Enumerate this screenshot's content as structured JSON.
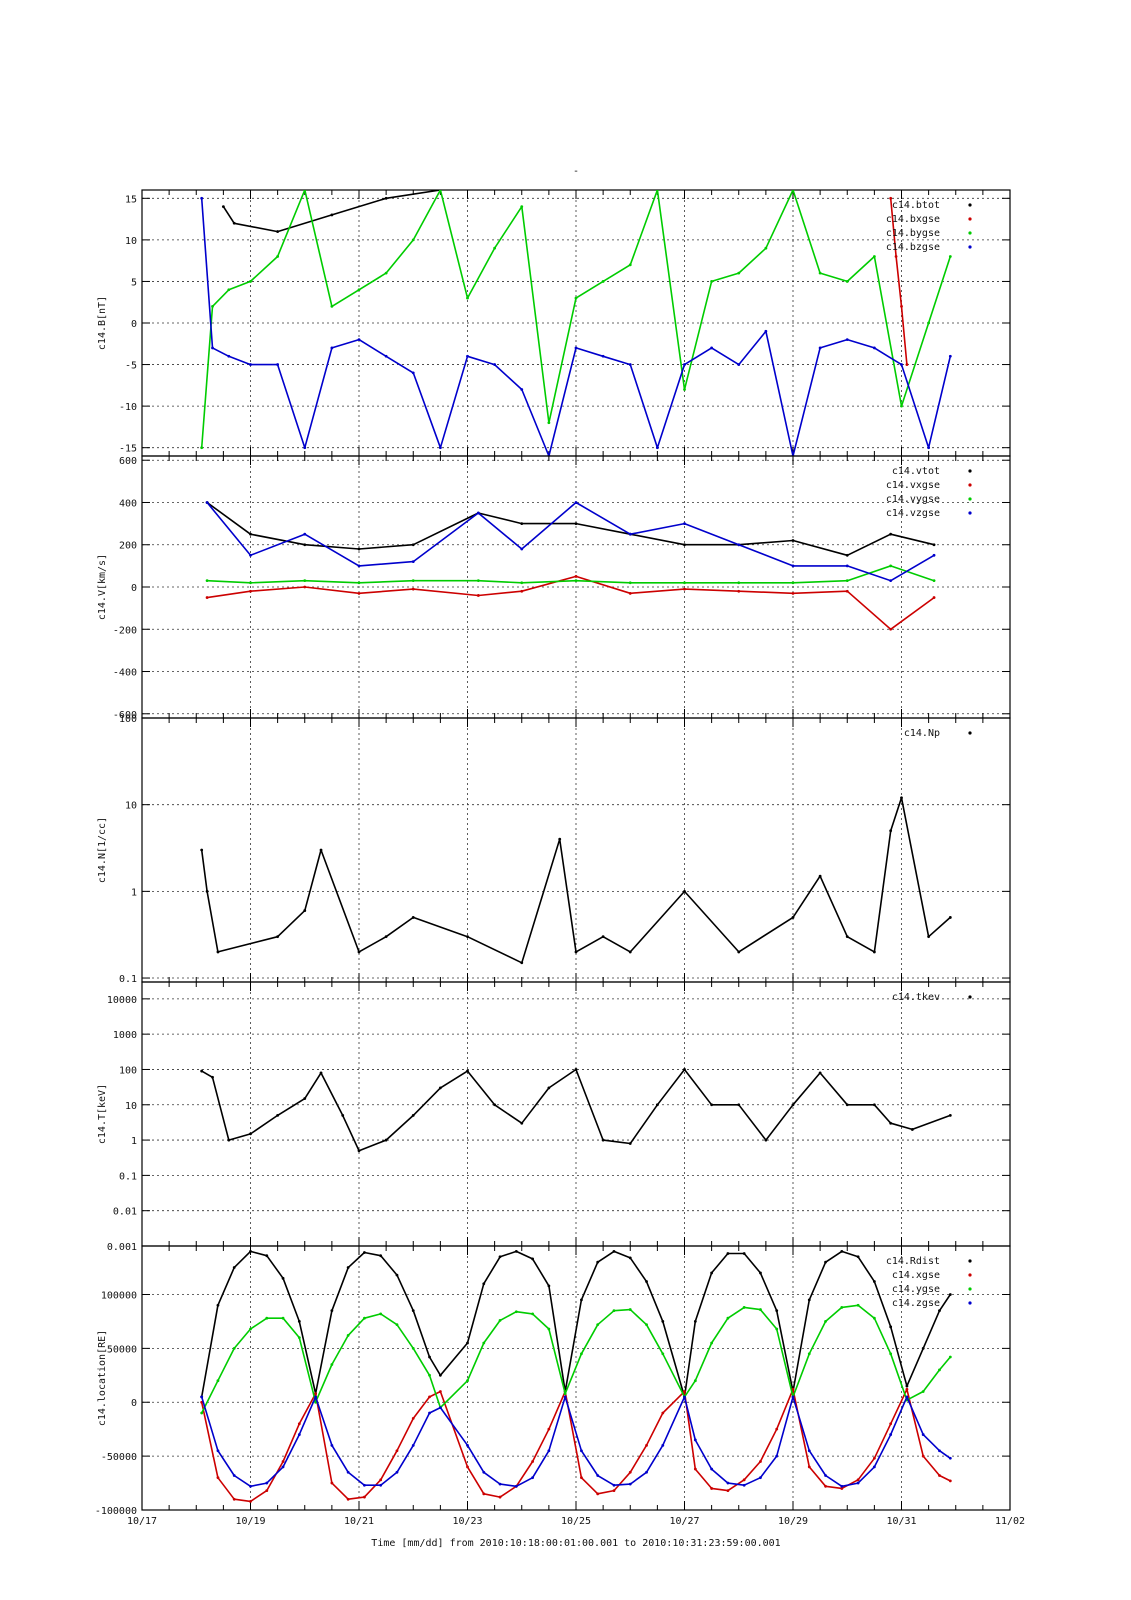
{
  "page_title": "-",
  "x_axis": {
    "label": "Time [mm/dd]  from 2010:10:18:00:01:00.001  to  2010:10:31:23:59:00.001",
    "range_days": [
      17,
      33
    ],
    "tick_labels": [
      "10/17",
      "10/19",
      "10/21",
      "10/23",
      "10/25",
      "10/27",
      "10/29",
      "10/31",
      "11/02"
    ],
    "tick_days": [
      17,
      19,
      21,
      23,
      25,
      27,
      29,
      31,
      33
    ],
    "minor_step_days": 0.5
  },
  "colors": {
    "black": "#000000",
    "red": "#cc0000",
    "green": "#00cc00",
    "blue": "#0000cc"
  },
  "chart_data": [
    {
      "type": "scatter",
      "ylabel": "c14.B[nT]",
      "ylim": [
        -16,
        16
      ],
      "yticks": [
        -15,
        -10,
        -5,
        0,
        5,
        10,
        15
      ],
      "ytick_labels": [
        "-15",
        "-10",
        "-5",
        "0",
        "5",
        "10",
        "15"
      ],
      "grid": true,
      "legend_position": "top-right",
      "series": [
        {
          "name": "c14.btot",
          "color": "black",
          "x": [
            18.5,
            18.7,
            19.5,
            20.5,
            21.5,
            22.5
          ],
          "y": [
            14,
            12,
            11,
            13,
            15,
            16
          ]
        },
        {
          "name": "c14.bxgse",
          "color": "red",
          "x": [
            30.8,
            30.9,
            31.0,
            31.1
          ],
          "y": [
            15,
            8,
            2,
            -5
          ]
        },
        {
          "name": "c14.bygse",
          "color": "green",
          "x": [
            18.1,
            18.3,
            18.6,
            19.0,
            19.5,
            20.0,
            20.5,
            21.0,
            21.5,
            22.0,
            22.5,
            23.0,
            23.5,
            24.0,
            24.5,
            25.0,
            25.5,
            26.0,
            26.5,
            27.0,
            27.5,
            28.0,
            28.5,
            29.0,
            29.5,
            30.0,
            30.5,
            31.0,
            31.5,
            31.9
          ],
          "y": [
            -15,
            2,
            4,
            5,
            8,
            16,
            2,
            4,
            6,
            10,
            16,
            3,
            9,
            14,
            -12,
            3,
            5,
            7,
            16,
            -8,
            5,
            6,
            9,
            16,
            6,
            5,
            8,
            -10,
            0,
            8
          ]
        },
        {
          "name": "c14.bzgse",
          "color": "blue",
          "x": [
            18.1,
            18.3,
            18.6,
            19.0,
            19.5,
            20.0,
            20.5,
            21.0,
            21.5,
            22.0,
            22.5,
            23.0,
            23.5,
            24.0,
            24.5,
            25.0,
            25.5,
            26.0,
            26.5,
            27.0,
            27.5,
            28.0,
            28.5,
            29.0,
            29.5,
            30.0,
            30.5,
            31.0,
            31.5,
            31.9
          ],
          "y": [
            15,
            -3,
            -4,
            -5,
            -5,
            -15,
            -3,
            -2,
            -4,
            -6,
            -15,
            -4,
            -5,
            -8,
            -16,
            -3,
            -4,
            -5,
            -15,
            -5,
            -3,
            -5,
            -1,
            -16,
            -3,
            -2,
            -3,
            -5,
            -15,
            -4
          ]
        }
      ]
    },
    {
      "type": "scatter",
      "ylabel": "c14.V[km/s]",
      "ylim": [
        -620,
        620
      ],
      "yticks": [
        -600,
        -400,
        -200,
        0,
        200,
        400,
        600
      ],
      "ytick_labels": [
        "-600",
        "-400",
        "-200",
        "0",
        "200",
        "400",
        "600"
      ],
      "grid": true,
      "legend_position": "top-right",
      "series": [
        {
          "name": "c14.vtot",
          "color": "black",
          "x": [
            18.2,
            19.0,
            20.0,
            21.0,
            22.0,
            23.2,
            24.0,
            25.0,
            26.0,
            27.0,
            28.0,
            29.0,
            30.0,
            30.8,
            31.6
          ],
          "y": [
            400,
            250,
            200,
            180,
            200,
            350,
            300,
            300,
            250,
            200,
            200,
            220,
            150,
            250,
            200
          ]
        },
        {
          "name": "c14.vxgse",
          "color": "red",
          "x": [
            18.2,
            19.0,
            20.0,
            21.0,
            22.0,
            23.2,
            24.0,
            25.0,
            26.0,
            27.0,
            28.0,
            29.0,
            30.0,
            30.8,
            31.6
          ],
          "y": [
            -50,
            -20,
            0,
            -30,
            -10,
            -40,
            -20,
            50,
            -30,
            -10,
            -20,
            -30,
            -20,
            -200,
            -50
          ]
        },
        {
          "name": "c14.vygse",
          "color": "green",
          "x": [
            18.2,
            19.0,
            20.0,
            21.0,
            22.0,
            23.2,
            24.0,
            25.0,
            26.0,
            27.0,
            28.0,
            29.0,
            30.0,
            30.8,
            31.6
          ],
          "y": [
            30,
            20,
            30,
            20,
            30,
            30,
            20,
            30,
            20,
            20,
            20,
            20,
            30,
            100,
            30
          ]
        },
        {
          "name": "c14.vzgse",
          "color": "blue",
          "x": [
            18.2,
            19.0,
            20.0,
            21.0,
            22.0,
            23.2,
            24.0,
            25.0,
            26.0,
            27.0,
            28.0,
            29.0,
            30.0,
            30.8,
            31.6
          ],
          "y": [
            400,
            150,
            250,
            100,
            120,
            350,
            180,
            400,
            250,
            300,
            200,
            100,
            100,
            30,
            150
          ]
        }
      ]
    },
    {
      "type": "scatter",
      "ylabel": "c14.N[1/cc]",
      "yscale": "log",
      "ylim": [
        0.09,
        100
      ],
      "yticks": [
        0.1,
        1,
        10,
        100
      ],
      "ytick_labels": [
        "0.1",
        "1",
        "10",
        "100"
      ],
      "grid": true,
      "legend_position": "top-right",
      "series": [
        {
          "name": "c14.Np",
          "color": "black",
          "x": [
            18.1,
            18.2,
            18.4,
            19.5,
            20.0,
            20.3,
            21.0,
            21.5,
            22.0,
            23.0,
            24.0,
            24.7,
            25.0,
            25.5,
            26.0,
            27.0,
            28.0,
            29.0,
            29.5,
            30.0,
            30.5,
            30.8,
            31.0,
            31.5,
            31.9
          ],
          "y": [
            3,
            1,
            0.2,
            0.3,
            0.6,
            3,
            0.2,
            0.3,
            0.5,
            0.3,
            0.15,
            4,
            0.2,
            0.3,
            0.2,
            1,
            0.2,
            0.5,
            1.5,
            0.3,
            0.2,
            5,
            12,
            0.3,
            0.5
          ]
        }
      ]
    },
    {
      "type": "scatter",
      "ylabel": "c14.T[keV]",
      "yscale": "log",
      "ylim": [
        0.001,
        30000
      ],
      "yticks": [
        0.001,
        0.01,
        0.1,
        1,
        10,
        100,
        1000,
        10000
      ],
      "ytick_labels": [
        "0.001",
        "0.01",
        "0.1",
        "1",
        "10",
        "100",
        "1000",
        "10000"
      ],
      "grid": true,
      "legend_position": "top-right",
      "series": [
        {
          "name": "c14.tkev",
          "color": "black",
          "x": [
            18.1,
            18.3,
            18.6,
            19.0,
            19.5,
            20.0,
            20.3,
            20.7,
            21.0,
            21.5,
            22.0,
            22.5,
            23.0,
            23.5,
            24.0,
            24.5,
            25.0,
            25.5,
            26.0,
            26.5,
            27.0,
            27.5,
            28.0,
            28.5,
            29.0,
            29.5,
            30.0,
            30.5,
            30.8,
            31.2,
            31.9
          ],
          "y": [
            90,
            60,
            1,
            1.5,
            5,
            15,
            80,
            5,
            0.5,
            1,
            5,
            30,
            90,
            10,
            3,
            30,
            100,
            1,
            0.8,
            10,
            100,
            10,
            10,
            1,
            10,
            80,
            10,
            10,
            3,
            2,
            5
          ]
        }
      ]
    },
    {
      "type": "scatter",
      "ylabel": "c14.location[RE]",
      "ylim": [
        -100000,
        145000
      ],
      "yticks": [
        -100000,
        -50000,
        0,
        50000,
        100000
      ],
      "ytick_labels": [
        "-100000",
        "-50000",
        "0",
        "50000",
        "100000"
      ],
      "grid": true,
      "legend_position": "top-right",
      "series": [
        {
          "name": "c14.Rdist",
          "color": "black",
          "x": [
            18.1,
            18.4,
            18.7,
            19.0,
            19.3,
            19.6,
            19.9,
            20.2,
            20.5,
            20.8,
            21.1,
            21.4,
            21.7,
            22.0,
            22.3,
            22.5,
            23.0,
            23.3,
            23.6,
            23.9,
            24.2,
            24.5,
            24.8,
            25.1,
            25.4,
            25.7,
            26.0,
            26.3,
            26.6,
            27.0,
            27.2,
            27.5,
            27.8,
            28.1,
            28.4,
            28.7,
            29.0,
            29.3,
            29.6,
            29.9,
            30.2,
            30.5,
            30.8,
            31.1,
            31.4,
            31.7,
            31.9
          ],
          "y": [
            5000,
            90000,
            125000,
            140000,
            136000,
            115000,
            75000,
            8000,
            85000,
            125000,
            139000,
            136000,
            118000,
            85000,
            42000,
            25000,
            55000,
            110000,
            135000,
            140000,
            133000,
            108000,
            10000,
            95000,
            130000,
            140000,
            134000,
            112000,
            75000,
            5000,
            75000,
            120000,
            138000,
            138000,
            120000,
            85000,
            10000,
            95000,
            130000,
            140000,
            135000,
            112000,
            70000,
            15000,
            50000,
            85000,
            100000
          ]
        },
        {
          "name": "c14.xgse",
          "color": "red",
          "x": [
            18.1,
            18.4,
            18.7,
            19.0,
            19.3,
            19.6,
            19.9,
            20.2,
            20.5,
            20.8,
            21.1,
            21.4,
            21.7,
            22.0,
            22.3,
            22.5,
            23.0,
            23.3,
            23.6,
            23.9,
            24.2,
            24.5,
            24.8,
            25.1,
            25.4,
            25.7,
            26.0,
            26.3,
            26.6,
            27.0,
            27.2,
            27.5,
            27.8,
            28.1,
            28.4,
            28.7,
            29.0,
            29.3,
            29.6,
            29.9,
            30.2,
            30.5,
            30.8,
            31.1,
            31.4,
            31.7,
            31.9
          ],
          "y": [
            0,
            -70000,
            -90000,
            -92000,
            -82000,
            -55000,
            -20000,
            8000,
            -75000,
            -90000,
            -88000,
            -72000,
            -45000,
            -15000,
            5000,
            10000,
            -60000,
            -85000,
            -88000,
            -78000,
            -55000,
            -25000,
            10000,
            -70000,
            -85000,
            -82000,
            -65000,
            -40000,
            -10000,
            10000,
            -62000,
            -80000,
            -82000,
            -72000,
            -55000,
            -25000,
            12000,
            -60000,
            -78000,
            -80000,
            -72000,
            -52000,
            -20000,
            12000,
            -50000,
            -68000,
            -73000
          ]
        },
        {
          "name": "c14.ygse",
          "color": "green",
          "x": [
            18.1,
            18.4,
            18.7,
            19.0,
            19.3,
            19.6,
            19.9,
            20.2,
            20.5,
            20.8,
            21.1,
            21.4,
            21.7,
            22.0,
            22.3,
            22.5,
            23.0,
            23.3,
            23.6,
            23.9,
            24.2,
            24.5,
            24.8,
            25.1,
            25.4,
            25.7,
            26.0,
            26.3,
            26.6,
            27.0,
            27.2,
            27.5,
            27.8,
            28.1,
            28.4,
            28.7,
            29.0,
            29.3,
            29.6,
            29.9,
            30.2,
            30.5,
            30.8,
            31.1,
            31.4,
            31.7,
            31.9
          ],
          "y": [
            -10000,
            20000,
            50000,
            68000,
            78000,
            78000,
            60000,
            0,
            35000,
            62000,
            78000,
            82000,
            72000,
            50000,
            25000,
            -5000,
            20000,
            55000,
            76000,
            84000,
            82000,
            68000,
            8000,
            45000,
            72000,
            85000,
            86000,
            72000,
            45000,
            5000,
            20000,
            55000,
            78000,
            88000,
            86000,
            68000,
            5000,
            45000,
            75000,
            88000,
            90000,
            78000,
            45000,
            2000,
            10000,
            30000,
            42000
          ]
        },
        {
          "name": "c14.zgse",
          "color": "blue",
          "x": [
            18.1,
            18.4,
            18.7,
            19.0,
            19.3,
            19.6,
            19.9,
            20.2,
            20.5,
            20.8,
            21.1,
            21.4,
            21.7,
            22.0,
            22.3,
            22.5,
            23.0,
            23.3,
            23.6,
            23.9,
            24.2,
            24.5,
            24.8,
            25.1,
            25.4,
            25.7,
            26.0,
            26.3,
            26.6,
            27.0,
            27.2,
            27.5,
            27.8,
            28.1,
            28.4,
            28.7,
            29.0,
            29.3,
            29.6,
            29.9,
            30.2,
            30.5,
            30.8,
            31.1,
            31.4,
            31.7,
            31.9
          ],
          "y": [
            5000,
            -45000,
            -68000,
            -78000,
            -75000,
            -60000,
            -30000,
            5000,
            -40000,
            -65000,
            -77000,
            -77000,
            -65000,
            -40000,
            -10000,
            -5000,
            -40000,
            -65000,
            -76000,
            -78000,
            -70000,
            -45000,
            5000,
            -45000,
            -68000,
            -77000,
            -76000,
            -65000,
            -40000,
            5000,
            -35000,
            -62000,
            -75000,
            -77000,
            -70000,
            -50000,
            5000,
            -45000,
            -68000,
            -78000,
            -75000,
            -60000,
            -30000,
            5000,
            -30000,
            -45000,
            -52000
          ]
        }
      ]
    }
  ]
}
